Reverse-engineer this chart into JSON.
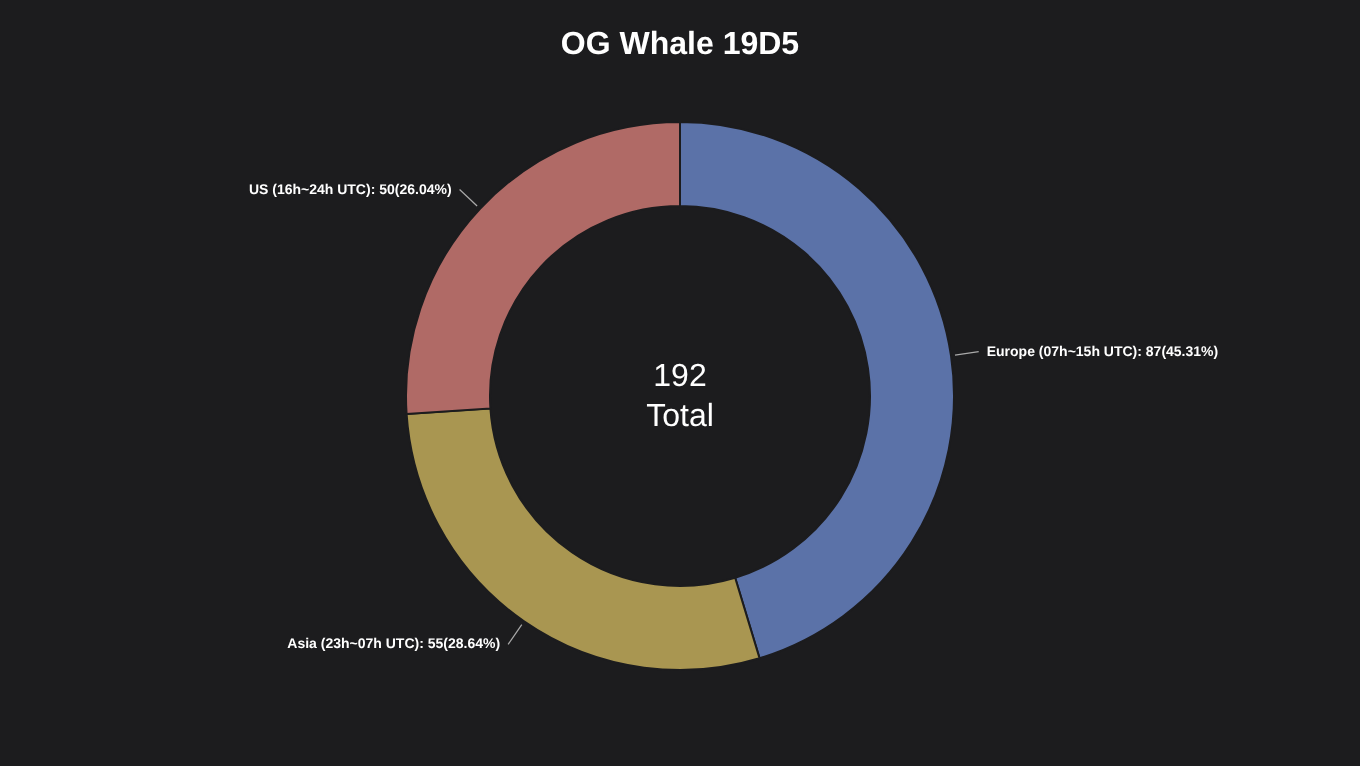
{
  "chart_data": {
    "type": "donut",
    "title": "OG Whale 19D5",
    "categories": [
      "Europe (07h~15h UTC)",
      "Asia (23h~07h UTC)",
      "US (16h~24h UTC)"
    ],
    "values": [
      87,
      55,
      50
    ],
    "value_labels": [
      "87(45.31%)",
      "55(28.64%)",
      "50(26.04%)"
    ],
    "colors": [
      "#5b72a8",
      "#a99651",
      "#b06a66"
    ],
    "annotations": [
      "192",
      "Total"
    ]
  }
}
